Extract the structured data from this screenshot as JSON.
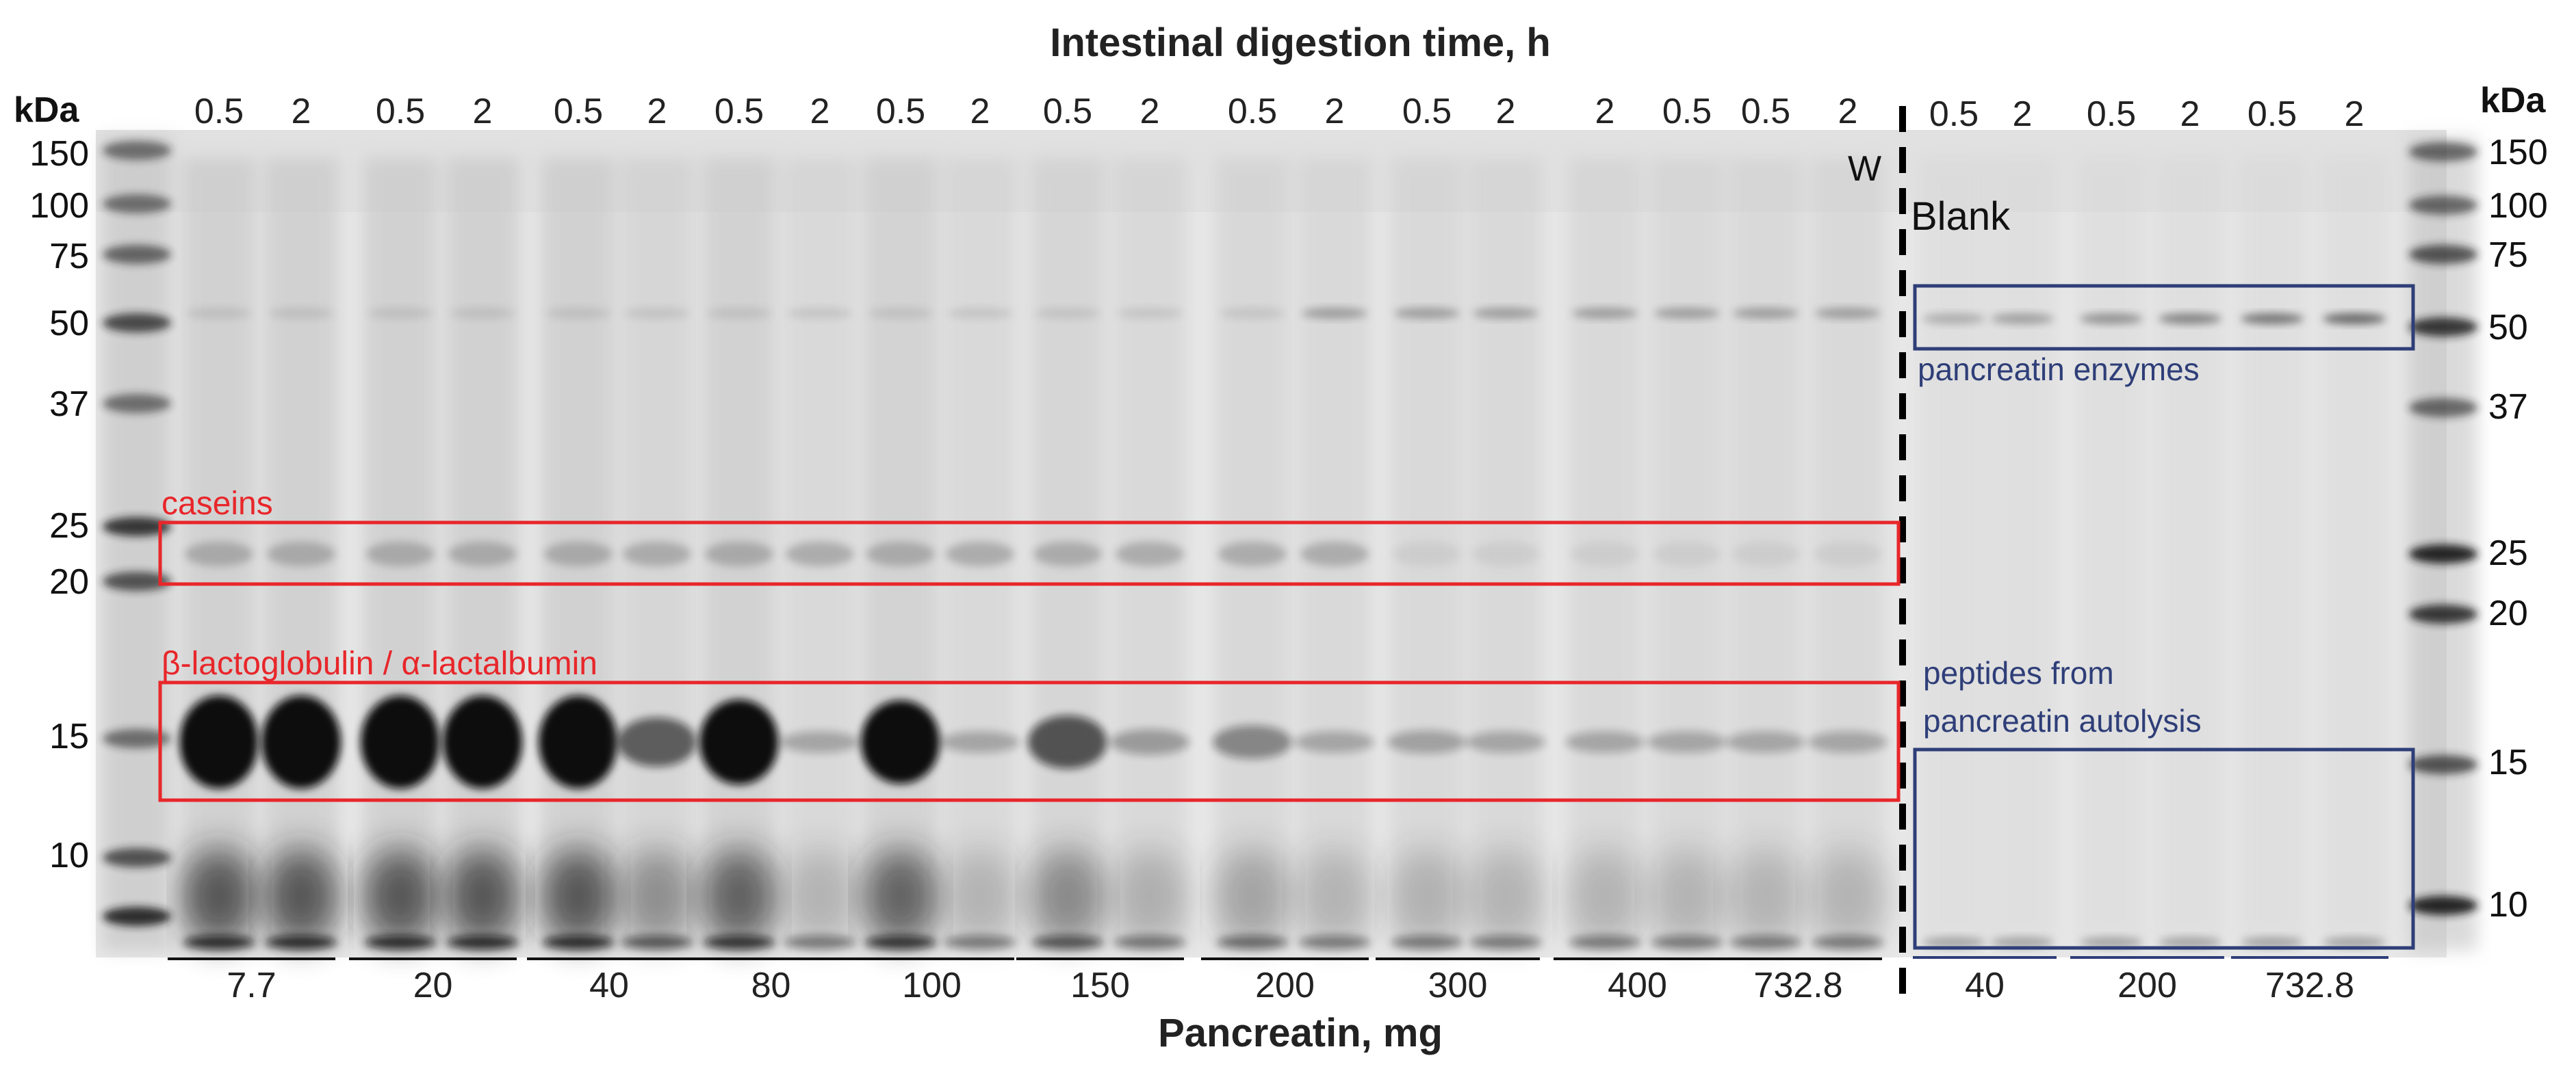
{
  "titles": {
    "top": "Intestinal digestion time, h",
    "bottom": "Pancreatin, mg"
  },
  "axis_unit": {
    "left": "kDa",
    "right": "kDa"
  },
  "time_labels": {
    "main": [
      "0.5",
      "2",
      "0.5",
      "2",
      "0.5",
      "2",
      "0.5",
      "2",
      "0.5",
      "2",
      "0.5",
      "2",
      "0.5",
      "2",
      "0.5",
      "2",
      "2",
      "0.5",
      "0.5",
      "2"
    ],
    "blank": [
      "0.5",
      "2",
      "0.5",
      "2",
      "0.5",
      "2"
    ]
  },
  "markers": {
    "left": [
      "150",
      "100",
      "75",
      "50",
      "37",
      "25",
      "20",
      "15",
      "10"
    ],
    "right": [
      "150",
      "100",
      "75",
      "50",
      "37",
      "25",
      "20",
      "15",
      "10"
    ]
  },
  "pancreatin_groups": {
    "main": [
      "7.7",
      "20",
      "40",
      "80",
      "100",
      "150",
      "200",
      "300",
      "400",
      "732.8"
    ],
    "blank": [
      "40",
      "200",
      "732.8"
    ]
  },
  "annotations": {
    "caseins": "caseins",
    "blg_ala": "β-lactoglobulin / α-lactalbumin",
    "enzymes": "pancreatin enzymes",
    "peptides_line1": "peptides from",
    "peptides_line2": "pancreatin autolysis",
    "w": "W",
    "blank": "Blank"
  },
  "colors": {
    "red_box": "#e8262a",
    "navy_box": "#2e3e78",
    "red_text": "#e8262a",
    "navy_text": "#2e3e78",
    "gel_bg": "#e7e7e7",
    "band_dark": "#111111"
  },
  "band_intensity_15kDa_main": [
    1.0,
    1.0,
    1.0,
    1.0,
    1.0,
    0.45,
    0.9,
    0.1,
    0.88,
    0.1,
    0.5,
    0.15,
    0.25,
    0.1,
    0.12,
    0.1,
    0.1,
    0.1,
    0.1,
    0.1
  ]
}
